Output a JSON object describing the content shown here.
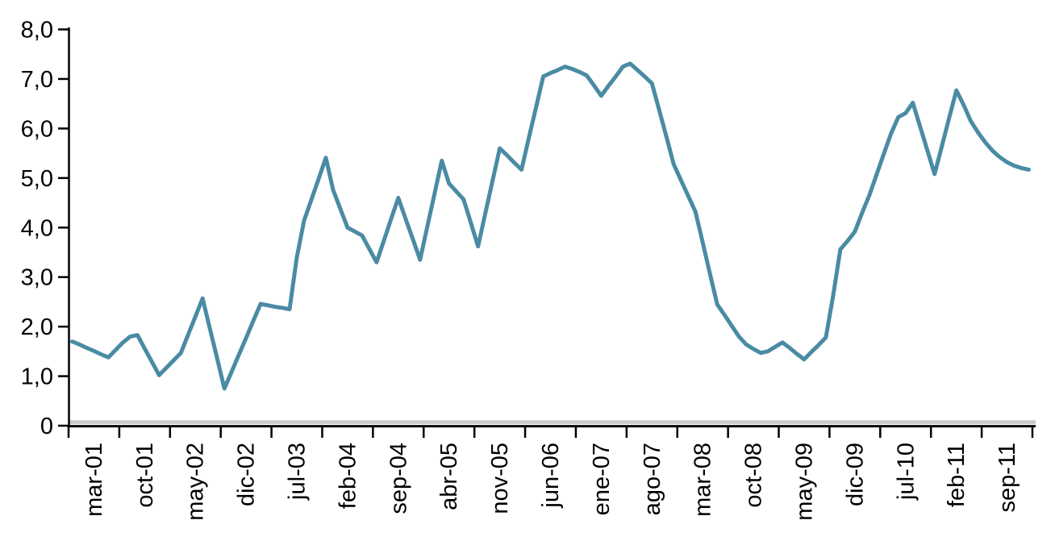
{
  "style": {
    "background": "#ffffff",
    "line_color": "#4A8BA4",
    "axis_color": "#000000",
    "text_color": "#000000",
    "zero_gridline_color": "#c9cbcb"
  },
  "chart_data": {
    "type": "line",
    "title": "",
    "xlabel": "",
    "ylabel": "",
    "grid": false,
    "legend": false,
    "ylim": [
      0,
      8
    ],
    "x_axis": {
      "tick_labels": [
        "mar-01",
        "oct-01",
        "may-02",
        "dic-02",
        "jul-03",
        "feb-04",
        "sep-04",
        "abr-05",
        "nov-05",
        "jun-06",
        "ene-07",
        "ago-07",
        "mar-08",
        "oct-08",
        "may-09",
        "dic-09",
        "jul-10",
        "feb-11",
        "sep-11"
      ],
      "label_every_n_points": 7,
      "first_labeled_point_index": 3,
      "tick_intervals": 19
    },
    "y_axis": {
      "tick_labels": [
        "8,0",
        "7,0",
        "6,0",
        "5,0",
        "4,0",
        "3,0",
        "2,0",
        "1,0",
        "0"
      ],
      "min": 0,
      "max": 8,
      "tick_step": 1,
      "decimal_style": "comma"
    },
    "series": [
      {
        "name": "",
        "color": "#4A8BA4",
        "x": [
          "dic-00",
          "ene-01",
          "feb-01",
          "mar-01",
          "abr-01",
          "may-01",
          "jun-01",
          "jul-01",
          "ago-01",
          "sep-01",
          "oct-01",
          "nov-01",
          "dic-01",
          "ene-02",
          "feb-02",
          "mar-02",
          "abr-02",
          "may-02",
          "jun-02",
          "jul-02",
          "ago-02",
          "sep-02",
          "oct-02",
          "nov-02",
          "dic-02",
          "ene-03",
          "feb-03",
          "mar-03",
          "abr-03",
          "may-03",
          "jun-03",
          "jul-03",
          "ago-03",
          "sep-03",
          "oct-03",
          "nov-03",
          "dic-03",
          "ene-04",
          "feb-04",
          "mar-04",
          "abr-04",
          "may-04",
          "jun-04",
          "jul-04",
          "ago-04",
          "sep-04",
          "oct-04",
          "nov-04",
          "dic-04",
          "ene-05",
          "feb-05",
          "mar-05",
          "abr-05",
          "may-05",
          "jun-05",
          "jul-05",
          "ago-05",
          "sep-05",
          "oct-05",
          "nov-05",
          "dic-05",
          "ene-06",
          "feb-06",
          "mar-06",
          "abr-06",
          "may-06",
          "jun-06",
          "jul-06",
          "ago-06",
          "sep-06",
          "oct-06",
          "nov-06",
          "dic-06",
          "ene-07",
          "feb-07",
          "mar-07",
          "abr-07",
          "may-07",
          "jun-07",
          "jul-07",
          "ago-07",
          "sep-07",
          "oct-07",
          "nov-07",
          "dic-07",
          "ene-08",
          "feb-08",
          "mar-08",
          "abr-08",
          "may-08",
          "jun-08",
          "jul-08",
          "ago-08",
          "sep-08",
          "oct-08",
          "nov-08",
          "dic-08",
          "ene-09",
          "feb-09",
          "mar-09",
          "abr-09",
          "may-09",
          "jun-09",
          "jul-09",
          "ago-09",
          "sep-09",
          "oct-09",
          "nov-09",
          "dic-09",
          "ene-10",
          "feb-10",
          "mar-10",
          "abr-10",
          "may-10",
          "jun-10",
          "jul-10",
          "ago-10",
          "sep-10",
          "oct-10",
          "nov-10",
          "dic-10",
          "ene-11",
          "feb-11",
          "mar-11",
          "abr-11",
          "may-11",
          "jun-11",
          "jul-11",
          "ago-11",
          "sep-11",
          "oct-11",
          "nov-11",
          "dic-11"
        ],
        "values": [
          1.7,
          1.64,
          1.57,
          1.51,
          1.44,
          1.38,
          1.53,
          1.68,
          1.8,
          1.83,
          1.56,
          1.29,
          1.02,
          1.17,
          1.32,
          1.47,
          1.84,
          2.2,
          2.57,
          1.96,
          1.36,
          0.75,
          1.09,
          1.43,
          1.77,
          2.12,
          2.46,
          2.43,
          2.4,
          2.38,
          2.35,
          3.4,
          4.14,
          4.56,
          4.98,
          5.41,
          4.76,
          4.38,
          4.0,
          3.92,
          3.84,
          3.57,
          3.3,
          3.73,
          4.17,
          4.6,
          4.18,
          3.77,
          3.35,
          4.02,
          4.68,
          5.35,
          4.89,
          4.73,
          4.57,
          4.1,
          3.62,
          4.28,
          4.94,
          5.6,
          5.46,
          5.31,
          5.17,
          5.8,
          6.42,
          7.05,
          7.12,
          7.18,
          7.25,
          7.2,
          7.14,
          7.07,
          6.87,
          6.66,
          6.86,
          7.05,
          7.25,
          7.31,
          7.18,
          7.05,
          6.91,
          6.37,
          5.83,
          5.28,
          4.96,
          4.64,
          4.32,
          3.7,
          3.07,
          2.45,
          2.24,
          2.02,
          1.8,
          1.64,
          1.55,
          1.47,
          1.5,
          1.59,
          1.68,
          1.57,
          1.45,
          1.34,
          1.49,
          1.63,
          1.78,
          2.62,
          3.56,
          3.73,
          3.92,
          4.3,
          4.65,
          5.07,
          5.49,
          5.9,
          6.23,
          6.31,
          6.52,
          6.04,
          5.56,
          5.08,
          5.64,
          6.21,
          6.77,
          6.48,
          6.15,
          5.92,
          5.72,
          5.55,
          5.42,
          5.32,
          5.25,
          5.2,
          5.17
        ]
      }
    ]
  }
}
